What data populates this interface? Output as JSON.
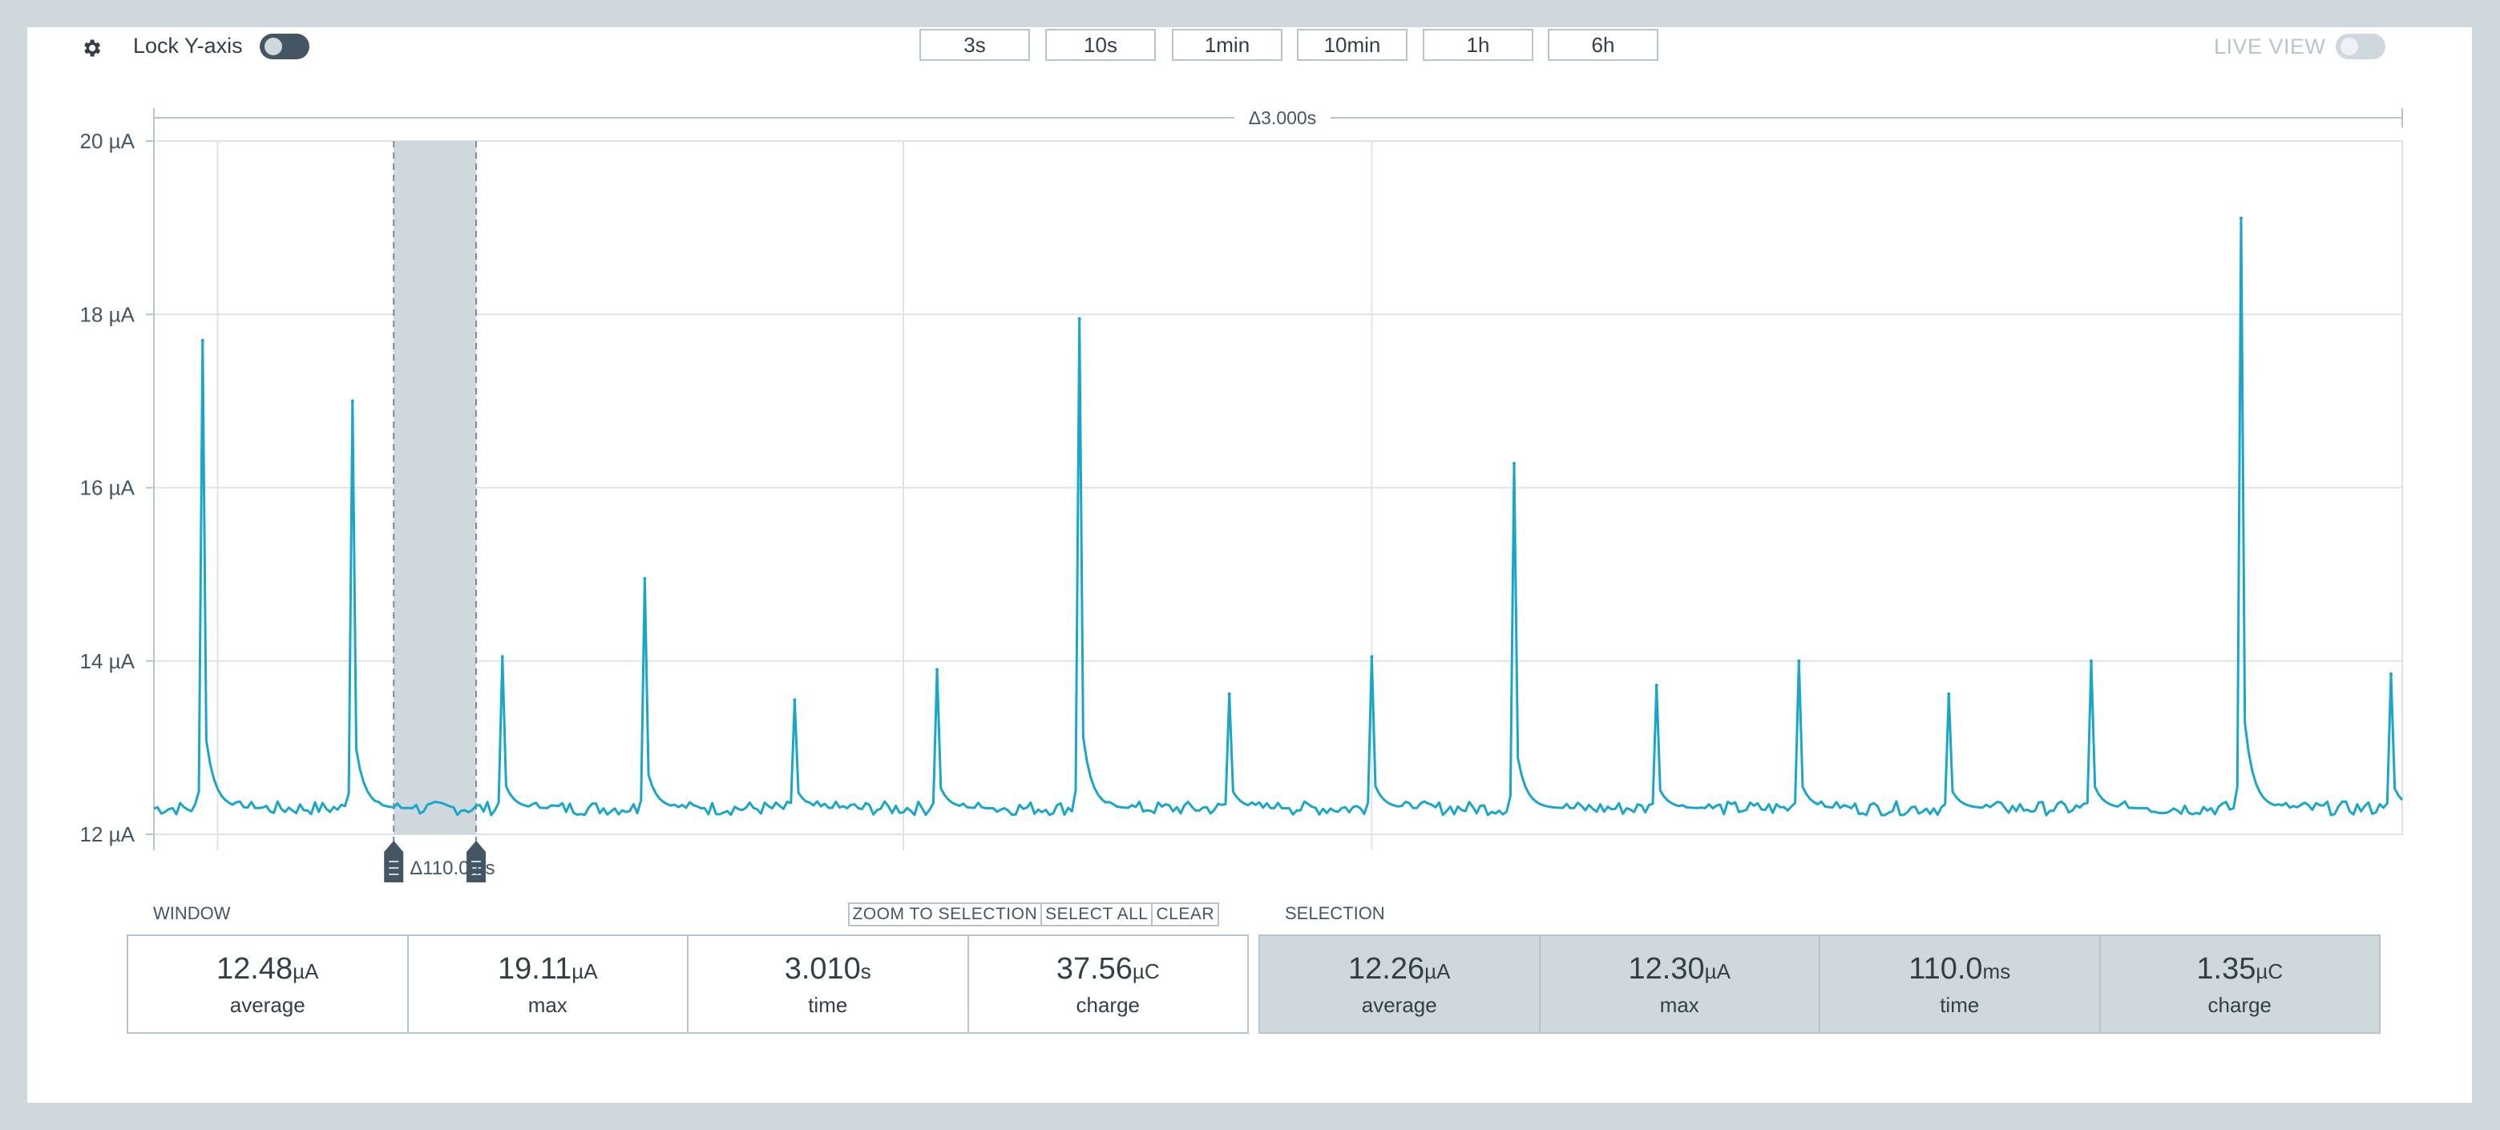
{
  "toolbar": {
    "lock_y_label": "Lock Y-axis",
    "lock_y_on": true,
    "window_buttons": [
      "3s",
      "10s",
      "1min",
      "10min",
      "1h",
      "6h"
    ],
    "live_view_label": "LIVE VIEW",
    "live_view_on": false
  },
  "chart_data": {
    "type": "line",
    "title": "",
    "xlabel": "",
    "ylabel": "",
    "y_unit": "µA",
    "ylim": [
      12,
      20
    ],
    "yticks": [
      "12 µA",
      "14 µA",
      "16 µA",
      "18 µA",
      "20 µA"
    ],
    "window_span_label": "Δ3.000s",
    "xlim": [
      0,
      3.0
    ],
    "line_color": "#1aa6c9",
    "baseline": 12.3,
    "peaks": [
      {
        "t": 0.065,
        "v": 17.7
      },
      {
        "t": 0.265,
        "v": 17.0
      },
      {
        "t": 0.465,
        "v": 14.05
      },
      {
        "t": 0.655,
        "v": 14.95
      },
      {
        "t": 0.855,
        "v": 13.55
      },
      {
        "t": 1.045,
        "v": 13.9
      },
      {
        "t": 1.235,
        "v": 17.95
      },
      {
        "t": 1.435,
        "v": 13.62
      },
      {
        "t": 1.625,
        "v": 14.05
      },
      {
        "t": 1.815,
        "v": 16.28
      },
      {
        "t": 2.005,
        "v": 13.72
      },
      {
        "t": 2.195,
        "v": 14.0
      },
      {
        "t": 2.395,
        "v": 13.62
      },
      {
        "t": 2.585,
        "v": 14.0
      },
      {
        "t": 2.785,
        "v": 19.11
      },
      {
        "t": 2.985,
        "v": 13.85
      }
    ],
    "selection": {
      "start": 0.32,
      "end": 0.43,
      "label": "Δ110.0ms"
    },
    "grid": true
  },
  "window_stats": {
    "label": "WINDOW",
    "items": [
      {
        "value": "12.48",
        "unit": "µA",
        "label": "average"
      },
      {
        "value": "19.11",
        "unit": "µA",
        "label": "max"
      },
      {
        "value": "3.010",
        "unit": "s",
        "label": "time"
      },
      {
        "value": "37.56",
        "unit": "µC",
        "label": "charge"
      }
    ]
  },
  "selection_stats": {
    "label": "SELECTION",
    "buttons": [
      "ZOOM TO SELECTION",
      "SELECT ALL",
      "CLEAR"
    ],
    "items": [
      {
        "value": "12.26",
        "unit": "µA",
        "label": "average"
      },
      {
        "value": "12.30",
        "unit": "µA",
        "label": "max"
      },
      {
        "value": "110.0",
        "unit": "ms",
        "label": "time"
      },
      {
        "value": "1.35",
        "unit": "µC",
        "label": "charge"
      }
    ]
  }
}
